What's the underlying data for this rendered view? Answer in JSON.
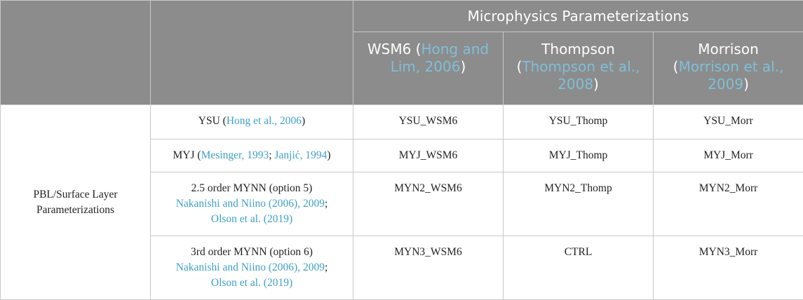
{
  "header": {
    "group_title": "Microphysics Parameterizations",
    "columns": [
      {
        "name": "WSM6",
        "open": " (",
        "ref": "Hong and Lim, 2006",
        "close": ")"
      },
      {
        "name": "Thompson",
        "open": "(",
        "ref": "Thompson et al., 2008",
        "close": ")"
      },
      {
        "name": "Morrison",
        "open": "(",
        "ref": "Morrison et al., 2009",
        "close": ")"
      }
    ]
  },
  "row_group_label": "PBL/Surface Layer Parameterizations",
  "rows": [
    {
      "scheme": "YSU",
      "refs": [
        {
          "pre": " (",
          "ref": "Hong et al., 2006",
          "post": ")"
        }
      ],
      "values": [
        "YSU_WSM6",
        "YSU_Thomp",
        "YSU_Morr"
      ]
    },
    {
      "scheme": "MYJ",
      "refs": [
        {
          "pre": " (",
          "ref": "Mesinger, 1993",
          "post": "; "
        },
        {
          "pre": "",
          "ref": "Janjić, 1994",
          "post": ")"
        }
      ],
      "values": [
        "MYJ_WSM6",
        "MYJ_Thomp",
        "MYJ_Morr"
      ]
    },
    {
      "scheme": "2.5 order MYNN (option 5)",
      "line2_ref": "Nakanishi and Niino (2006), 2009",
      "line2_post": ";",
      "line3_ref": "Olson et al. (2019)",
      "values": [
        "MYN2_WSM6",
        "MYN2_Thomp",
        "MYN2_Morr"
      ]
    },
    {
      "scheme": "3rd order MYNN (option 6)",
      "line2_ref": "Nakanishi and Niino (2006), 2009",
      "line2_post": ";",
      "line3_ref": "Olson et al. (2019)",
      "values": [
        "MYN3_WSM6",
        "CTRL",
        "MYN3_Morr"
      ]
    }
  ],
  "colors": {
    "header_bg": "#8c8c8c",
    "link": "#3fa0c8",
    "border": "#c8c8c8"
  }
}
